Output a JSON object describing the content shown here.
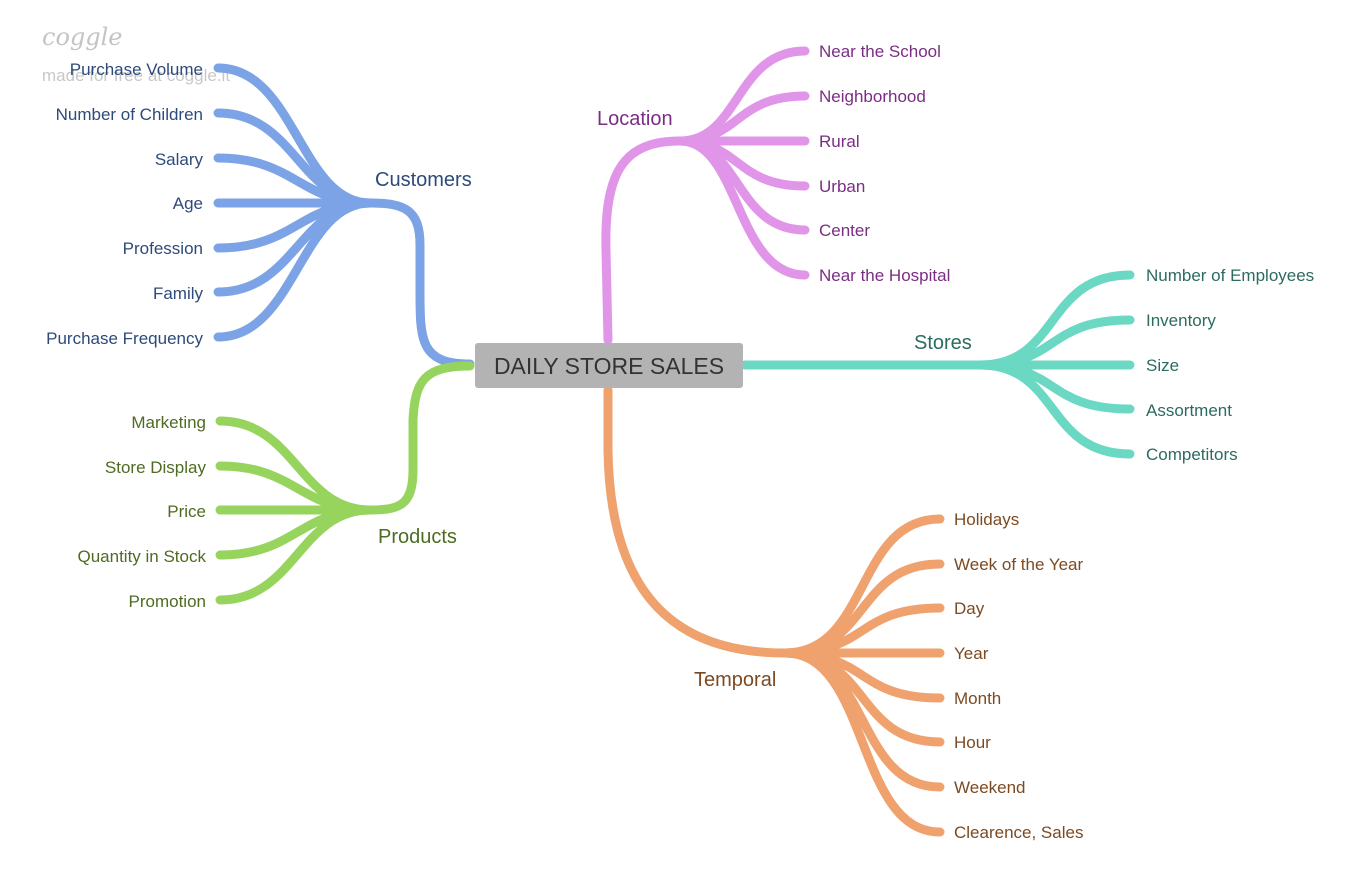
{
  "watermark": {
    "logo": "coggle",
    "tagline": "made for free at coggle.it"
  },
  "center": {
    "label": "DAILY STORE SALES",
    "fill": "#b3b3b3"
  },
  "branches": {
    "customers": {
      "label": "Customers",
      "color": "#7ba3e6",
      "text_color": "#2e4a7a",
      "children": [
        "Purchase Volume",
        "Number of Children",
        "Salary",
        "Age",
        "Profession",
        "Family",
        "Purchase Frequency"
      ]
    },
    "products": {
      "label": "Products",
      "color": "#97d45e",
      "text_color": "#4e6b22",
      "children": [
        "Marketing",
        "Store Display",
        "Price",
        "Quantity in Stock",
        "Promotion"
      ]
    },
    "location": {
      "label": "Location",
      "color": "#e095e8",
      "text_color": "#7b2d84",
      "children": [
        "Near the School",
        "Neighborhood",
        "Rural",
        "Urban",
        "Center",
        "Near the Hospital"
      ]
    },
    "stores": {
      "label": "Stores",
      "color": "#6ad8c3",
      "text_color": "#2b6b60",
      "children": [
        "Number of Employees",
        "Inventory",
        "Size",
        "Assortment",
        "Competitors"
      ]
    },
    "temporal": {
      "label": "Temporal",
      "color": "#f0a26e",
      "text_color": "#7c4a22",
      "children": [
        "Holidays",
        "Week of the Year",
        "Day",
        "Year",
        "Month",
        "Hour",
        "Weekend",
        "Clearence, Sales"
      ]
    }
  }
}
